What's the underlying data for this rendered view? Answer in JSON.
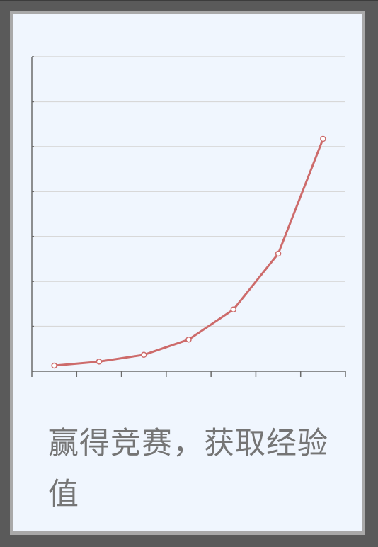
{
  "caption": "赢得竞赛，获取经验值",
  "colors": {
    "background": "#5a5a5a",
    "card": "#f0f6fe",
    "card_border": "#a9a9a9",
    "line": "#cd6b6b",
    "grid": "#d8d8d8",
    "axis": "#6b6b6b",
    "caption": "#757575"
  },
  "chart_data": {
    "type": "line",
    "title": "",
    "xlabel": "",
    "ylabel": "",
    "x": [
      1,
      2,
      3,
      4,
      5,
      6,
      7
    ],
    "series": [
      {
        "values": [
          1.0,
          2.4,
          4.8,
          10.2,
          20.8,
          40.5,
          81.0
        ]
      }
    ],
    "xlim": [
      0.5,
      7.5
    ],
    "ylim": [
      -1,
      110
    ],
    "grid": true,
    "legend": "none",
    "tick_labels": false
  }
}
